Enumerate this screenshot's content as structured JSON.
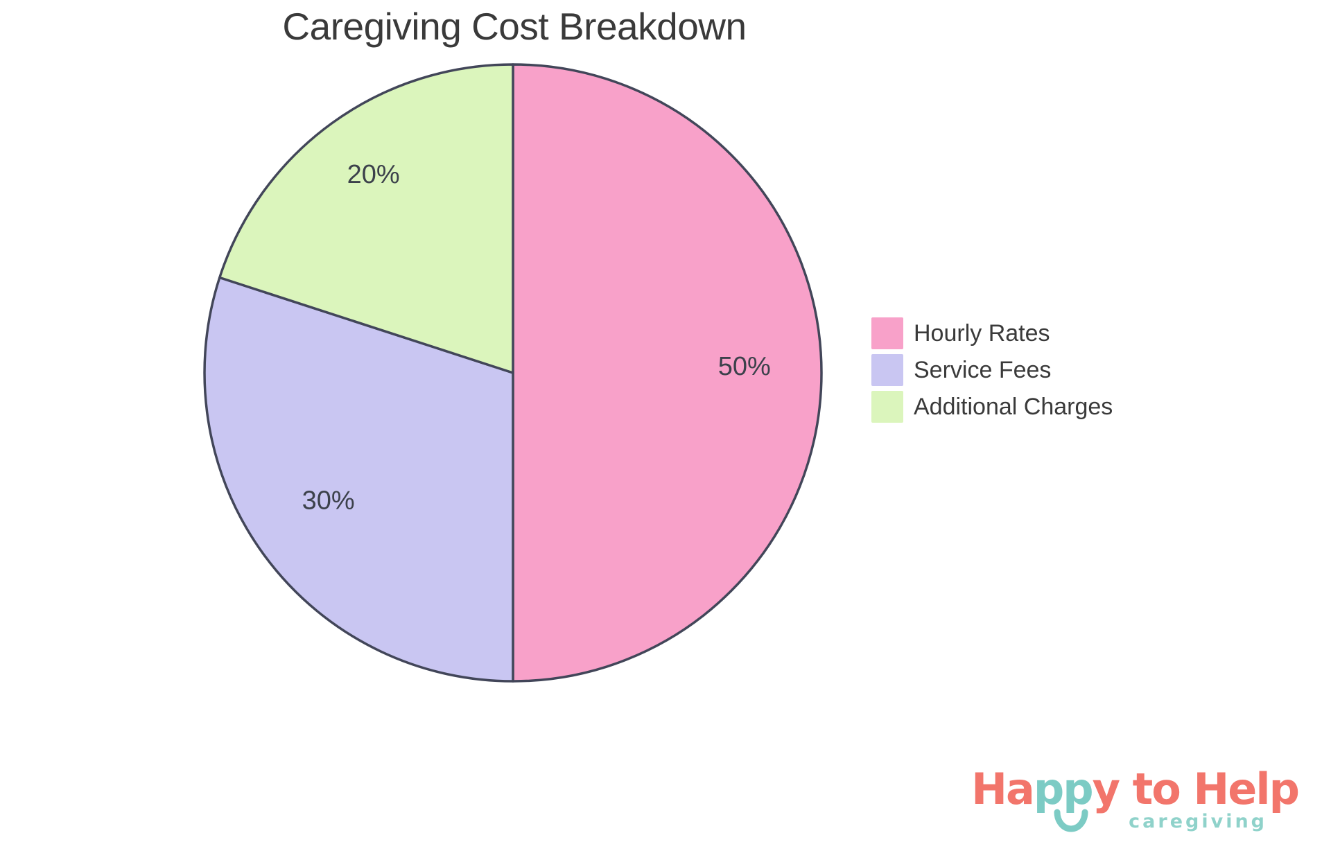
{
  "chart_data": {
    "type": "pie",
    "title": "Caregiving Cost Breakdown",
    "labels": [
      "Hourly Rates",
      "Service Fees",
      "Additional Charges"
    ],
    "values": [
      50,
      30,
      20
    ],
    "value_labels": [
      "50%",
      "30%",
      "20%"
    ],
    "colors": [
      "#F8A1C9",
      "#C9C6F2",
      "#DBF5BC"
    ],
    "outline_color": "#424659",
    "percent_label_color": "#3C414B",
    "title_color": "#3A3A3A",
    "start_angle": "top",
    "direction": "clockwise",
    "legend_position": "right",
    "label_distance": [
      0.75,
      0.74,
      0.77
    ]
  },
  "legend": {
    "items": [
      {
        "label": "Hourly Rates"
      },
      {
        "label": "Service Fees"
      },
      {
        "label": "Additional Charges"
      }
    ]
  },
  "logo": {
    "segments": [
      {
        "text": "Ha",
        "color": "#F2756B"
      },
      {
        "text": "pp",
        "color": "#7CCBC4"
      },
      {
        "text": "y",
        "color": "#F2756B"
      },
      {
        "text": " to Help",
        "color": "#F2756B"
      }
    ],
    "tagline": "caregiving",
    "tagline_color": "#8FD2CA",
    "smile_color": "#7CCBC4"
  }
}
